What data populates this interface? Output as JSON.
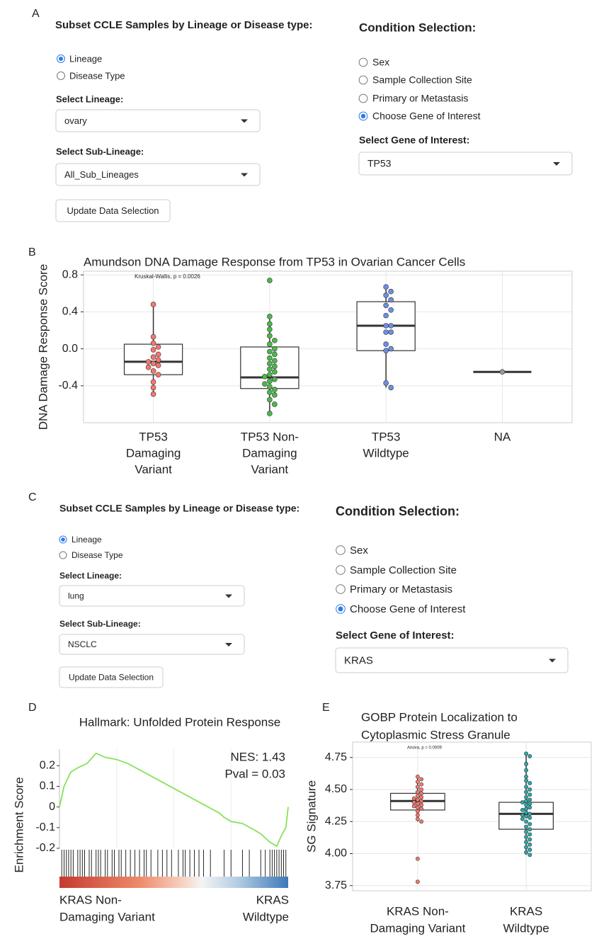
{
  "panel_labels": [
    "A",
    "B",
    "C",
    "D",
    "E"
  ],
  "forms": [
    {
      "subset_title": "Subset CCLE Samples by Lineage or Disease type:",
      "subset_options": [
        "Lineage",
        "Disease Type"
      ],
      "subset_selected": 0,
      "lineage_label": "Select Lineage:",
      "lineage": "ovary",
      "sublineage_label": "Select Sub-Lineage:",
      "sublineage": "All_Sub_Lineages",
      "button": "Update Data Selection",
      "condition_title": "Condition Selection:",
      "conditions": [
        "Sex",
        "Sample Collection Site",
        "Primary or Metastasis",
        "Choose Gene of Interest"
      ],
      "condition_selected": 3,
      "gene_label": "Select Gene of Interest:",
      "gene": "TP53"
    },
    {
      "subset_title": "Subset CCLE Samples by Lineage or Disease type:",
      "subset_options": [
        "Lineage",
        "Disease Type"
      ],
      "subset_selected": 0,
      "lineage_label": "Select Lineage:",
      "lineage": "lung",
      "sublineage_label": "Select Sub-Lineage:",
      "sublineage": "NSCLC",
      "button": "Update Data Selection",
      "condition_title": "Condition Selection:",
      "conditions": [
        "Sex",
        "Sample Collection Site",
        "Primary or Metastasis",
        "Choose Gene of Interest"
      ],
      "condition_selected": 3,
      "gene_label": "Select Gene of Interest:",
      "gene": "KRAS"
    }
  ],
  "chart_data": [
    {
      "type": "box",
      "title": [
        "Amundson DNA Damage Response from TP53 in Ovarian Cancer Cells"
      ],
      "y_label": "DNA Damage Response Score",
      "annotation": "Kruskal-Wallis, p = 0.0026",
      "categories": [
        [
          "TP53",
          "Damaging",
          "Variant"
        ],
        [
          "TP53 Non-",
          "Damaging",
          "Variant"
        ],
        [
          "TP53",
          "Wildtype"
        ],
        [
          "NA"
        ]
      ],
      "colors": [
        "#f8766d",
        "#4cb84c",
        "#6c8fe0",
        "#999999"
      ],
      "boxes": [
        {
          "low": -0.49,
          "q1": -0.28,
          "median": -0.14,
          "q3": 0.05,
          "high": 0.48,
          "points": [
            0.48,
            0.13,
            0.06,
            0.02,
            -0.01,
            -0.06,
            -0.09,
            -0.12,
            -0.14,
            -0.16,
            -0.18,
            -0.2,
            -0.24,
            -0.28,
            -0.36,
            -0.42,
            -0.49
          ]
        },
        {
          "low": -0.7,
          "q1": -0.43,
          "median": -0.31,
          "q3": 0.02,
          "high": 0.35,
          "points": [
            0.74,
            0.35,
            0.27,
            0.21,
            0.14,
            0.09,
            0.05,
            0.0,
            -0.03,
            -0.06,
            -0.1,
            -0.13,
            -0.16,
            -0.19,
            -0.22,
            -0.25,
            -0.28,
            -0.3,
            -0.33,
            -0.35,
            -0.38,
            -0.41,
            -0.44,
            -0.47,
            -0.5,
            -0.55,
            -0.6,
            -0.7
          ]
        },
        {
          "low": -0.42,
          "q1": -0.02,
          "median": 0.25,
          "q3": 0.51,
          "high": 0.67,
          "points": [
            0.67,
            0.62,
            0.58,
            0.53,
            0.47,
            0.42,
            0.36,
            0.25,
            0.25,
            0.18,
            0.18,
            0.05,
            0.0,
            -0.02,
            -0.37,
            -0.42
          ]
        },
        {
          "low": -0.25,
          "q1": -0.25,
          "median": -0.25,
          "q3": -0.25,
          "high": -0.25,
          "points": [
            -0.25
          ]
        }
      ],
      "ylim": [
        -0.8,
        0.84
      ],
      "yticks": [
        0.8,
        0.4,
        {
          "value": 0,
          "label": "0.0"
        },
        -0.4
      ],
      "grid": true
    },
    {
      "type": "gsea",
      "title": "Hallmark: Unfolded Protein Response",
      "y_label": "Enrichment Score",
      "annotations": [
        "NES: 1.43",
        "Pval = 0.03"
      ],
      "x_labels": [
        [
          "KRAS Non-",
          "Damaging Variant"
        ],
        [
          "KRAS",
          "Wildtype"
        ]
      ],
      "x": [
        0,
        2,
        5,
        8,
        12,
        16,
        20,
        25,
        30,
        35,
        40,
        45,
        50,
        55,
        60,
        65,
        70,
        72,
        75,
        80,
        85,
        88,
        92,
        95,
        97,
        99,
        100
      ],
      "values": [
        0,
        0.1,
        0.17,
        0.19,
        0.21,
        0.26,
        0.24,
        0.23,
        0.21,
        0.18,
        0.15,
        0.12,
        0.09,
        0.06,
        0.03,
        0.0,
        -0.03,
        -0.05,
        -0.07,
        -0.08,
        -0.11,
        -0.13,
        -0.17,
        -0.19,
        -0.14,
        -0.1,
        0.0
      ],
      "hits": [
        1,
        2,
        3,
        4,
        5,
        6,
        8,
        9,
        10,
        11,
        13,
        14,
        16,
        17,
        18,
        20,
        21,
        23,
        24,
        26,
        27,
        29,
        31,
        33,
        35,
        37,
        38,
        40,
        43,
        45,
        47,
        49,
        52,
        54,
        55,
        57,
        59,
        61,
        63,
        66,
        72,
        75,
        80,
        83,
        88,
        90,
        92,
        93,
        94,
        95,
        96,
        97,
        98,
        99
      ],
      "color": "#86e25a",
      "xlim": [
        0,
        100
      ],
      "ylim": [
        -0.2,
        0.28
      ],
      "yticks": [
        0.2,
        0.1,
        0,
        -0.1,
        -0.2
      ]
    },
    {
      "type": "box",
      "title": [
        "GOBP Protein Localization to",
        "Cytoplasmic Stress Granule"
      ],
      "y_label": "SG Signature",
      "annotation": "Anova, p = 0.0009",
      "categories": [
        [
          "KRAS Non-",
          "Damaging Variant"
        ],
        [
          "KRAS",
          "Wildtype"
        ]
      ],
      "colors": [
        "#f8766d",
        "#2aa9aa"
      ],
      "boxes": [
        {
          "low": 4.25,
          "q1": 4.34,
          "median": 4.41,
          "q3": 4.47,
          "high": 4.6,
          "points": [
            4.6,
            4.58,
            4.56,
            4.54,
            4.52,
            4.5,
            4.48,
            4.47,
            4.45,
            4.44,
            4.43,
            4.42,
            4.41,
            4.4,
            4.39,
            4.38,
            4.37,
            4.36,
            4.35,
            4.33,
            4.3,
            4.27,
            4.25,
            3.96,
            3.78
          ]
        },
        {
          "low": 3.99,
          "q1": 4.19,
          "median": 4.31,
          "q3": 4.4,
          "high": 4.78,
          "points": [
            4.78,
            4.76,
            4.7,
            4.65,
            4.6,
            4.57,
            4.55,
            4.52,
            4.5,
            4.48,
            4.46,
            4.44,
            4.42,
            4.41,
            4.4,
            4.39,
            4.38,
            4.36,
            4.35,
            4.34,
            4.32,
            4.31,
            4.3,
            4.29,
            4.28,
            4.27,
            4.25,
            4.23,
            4.21,
            4.19,
            4.17,
            4.15,
            4.13,
            4.11,
            4.09,
            4.07,
            4.05,
            4.03,
            4.01,
            3.99
          ]
        }
      ],
      "ylim": [
        3.71,
        4.87
      ],
      "yticks": [
        4.75,
        {
          "value": 4.5,
          "label": "4.50"
        },
        4.25,
        {
          "value": 4,
          "label": "4.00"
        },
        3.75
      ],
      "grid": true
    }
  ]
}
